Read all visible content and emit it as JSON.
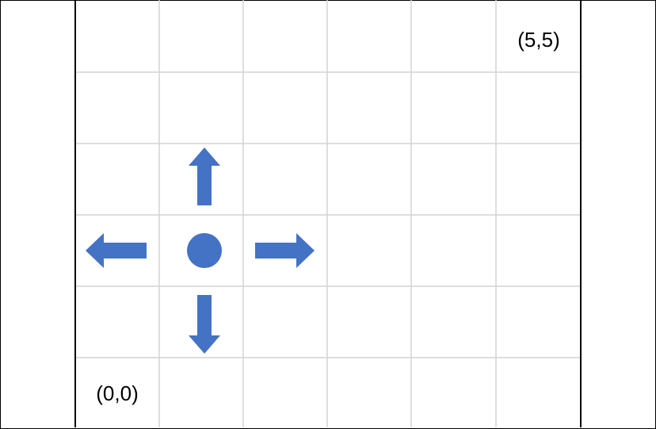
{
  "diagram": {
    "grid": {
      "columns": 6,
      "rows": 6,
      "line_color": "#d4d4d4",
      "border_color": "#000000"
    },
    "labels": {
      "top_right": "(5,5)",
      "bottom_left": "(0,0)"
    },
    "agent": {
      "shape": "circle",
      "color": "#4472c4",
      "cell": [
        1,
        2
      ]
    },
    "moves": [
      {
        "direction": "up",
        "icon": "arrow-up-icon"
      },
      {
        "direction": "down",
        "icon": "arrow-down-icon"
      },
      {
        "direction": "left",
        "icon": "arrow-left-icon"
      },
      {
        "direction": "right",
        "icon": "arrow-right-icon"
      }
    ]
  }
}
